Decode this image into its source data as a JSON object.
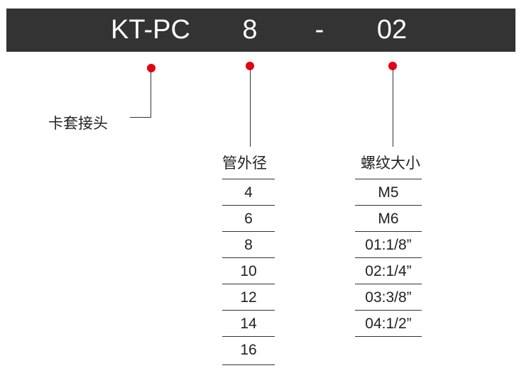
{
  "banner": {
    "parts": [
      "KT-PC",
      "8",
      "-",
      "02"
    ]
  },
  "labels": {
    "fitting": "卡套接头",
    "tube_od": "管外径",
    "thread": "螺纹大小"
  },
  "tube_od_values": [
    "4",
    "6",
    "8",
    "10",
    "12",
    "14",
    "16"
  ],
  "thread_values": [
    "M5",
    "M6",
    "01:1/8”",
    "02:1/4”",
    "03:3/8”",
    "04:1/2”"
  ],
  "colors": {
    "banner": "#333333",
    "dot": "#e60012"
  }
}
